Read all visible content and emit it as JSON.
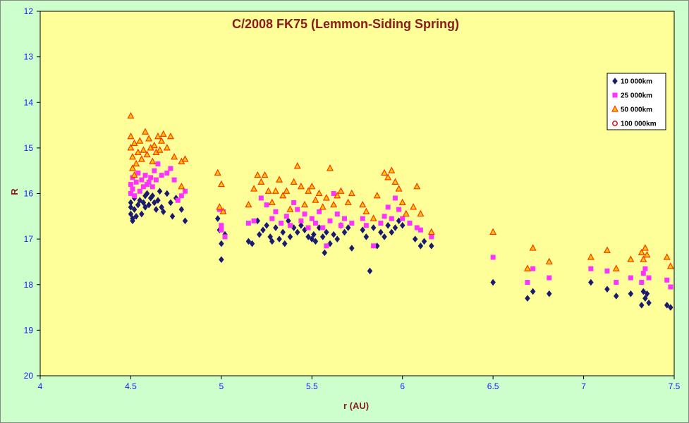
{
  "chart_data": {
    "type": "scatter",
    "title": "C/2008 FK75 (Lemmon-Siding Spring)",
    "xlabel": "r (AU)",
    "ylabel": "R",
    "xlim": [
      4,
      7.5
    ],
    "ylim": [
      12,
      20
    ],
    "y_inverted": true,
    "x_ticks": [
      "4",
      "4.5",
      "5",
      "5.5",
      "6",
      "6.5",
      "7",
      "7.5"
    ],
    "y_ticks": [
      "12",
      "13",
      "14",
      "15",
      "16",
      "17",
      "18",
      "19",
      "20"
    ],
    "grid": false,
    "legend_position": "top-right",
    "plot_background": "#ffff99",
    "page_background": "#ccffcc",
    "series": [
      {
        "name": "10 000km",
        "marker": "diamond",
        "color": "#1a1a70",
        "points": [
          [
            4.5,
            16.2
          ],
          [
            4.5,
            16.3
          ],
          [
            4.5,
            16.45
          ],
          [
            4.51,
            16.55
          ],
          [
            4.51,
            16.6
          ],
          [
            4.52,
            16.1
          ],
          [
            4.52,
            16.35
          ],
          [
            4.53,
            16.5
          ],
          [
            4.54,
            16.25
          ],
          [
            4.55,
            16.15
          ],
          [
            4.56,
            16.45
          ],
          [
            4.57,
            16.2
          ],
          [
            4.58,
            16.05
          ],
          [
            4.58,
            16.3
          ],
          [
            4.59,
            16.0
          ],
          [
            4.6,
            16.25
          ],
          [
            4.61,
            16.1
          ],
          [
            4.62,
            16.05
          ],
          [
            4.63,
            16.2
          ],
          [
            4.64,
            16.35
          ],
          [
            4.65,
            16.15
          ],
          [
            4.66,
            15.95
          ],
          [
            4.67,
            16.3
          ],
          [
            4.68,
            16.4
          ],
          [
            4.7,
            16.0
          ],
          [
            4.72,
            16.2
          ],
          [
            4.73,
            16.5
          ],
          [
            4.75,
            16.1
          ],
          [
            4.78,
            16.35
          ],
          [
            4.8,
            16.6
          ],
          [
            4.98,
            16.55
          ],
          [
            4.99,
            16.8
          ],
          [
            5.0,
            17.1
          ],
          [
            5.0,
            17.45
          ],
          [
            5.02,
            16.9
          ],
          [
            5.15,
            17.05
          ],
          [
            5.17,
            17.1
          ],
          [
            5.2,
            16.6
          ],
          [
            5.21,
            16.9
          ],
          [
            5.23,
            16.8
          ],
          [
            5.25,
            16.7
          ],
          [
            5.27,
            16.95
          ],
          [
            5.28,
            17.05
          ],
          [
            5.3,
            16.75
          ],
          [
            5.32,
            17.0
          ],
          [
            5.34,
            16.85
          ],
          [
            5.35,
            17.1
          ],
          [
            5.37,
            16.6
          ],
          [
            5.38,
            16.95
          ],
          [
            5.4,
            16.75
          ],
          [
            5.42,
            16.85
          ],
          [
            5.44,
            16.7
          ],
          [
            5.46,
            16.8
          ],
          [
            5.48,
            16.95
          ],
          [
            5.5,
            17.0
          ],
          [
            5.51,
            16.9
          ],
          [
            5.52,
            17.05
          ],
          [
            5.54,
            16.75
          ],
          [
            5.56,
            16.95
          ],
          [
            5.57,
            17.3
          ],
          [
            5.58,
            16.85
          ],
          [
            5.6,
            17.1
          ],
          [
            5.62,
            16.9
          ],
          [
            5.64,
            17.0
          ],
          [
            5.66,
            16.7
          ],
          [
            5.68,
            16.85
          ],
          [
            5.7,
            16.75
          ],
          [
            5.72,
            17.2
          ],
          [
            5.78,
            16.8
          ],
          [
            5.8,
            16.95
          ],
          [
            5.82,
            17.7
          ],
          [
            5.84,
            16.75
          ],
          [
            5.86,
            17.15
          ],
          [
            5.88,
            16.85
          ],
          [
            5.9,
            16.95
          ],
          [
            5.92,
            16.7
          ],
          [
            5.94,
            16.85
          ],
          [
            5.96,
            16.75
          ],
          [
            5.98,
            16.6
          ],
          [
            6.0,
            16.7
          ],
          [
            6.07,
            17.0
          ],
          [
            6.1,
            17.15
          ],
          [
            6.12,
            17.05
          ],
          [
            6.16,
            17.15
          ],
          [
            6.5,
            17.95
          ],
          [
            6.69,
            18.3
          ],
          [
            6.72,
            18.15
          ],
          [
            6.81,
            18.2
          ],
          [
            7.04,
            17.95
          ],
          [
            7.13,
            18.1
          ],
          [
            7.18,
            18.25
          ],
          [
            7.26,
            18.2
          ],
          [
            7.32,
            18.45
          ],
          [
            7.33,
            18.15
          ],
          [
            7.34,
            18.3
          ],
          [
            7.35,
            18.2
          ],
          [
            7.36,
            18.4
          ],
          [
            7.46,
            18.45
          ],
          [
            7.48,
            18.5
          ]
        ]
      },
      {
        "name": "25 000km",
        "marker": "square",
        "color": "#ff33ff",
        "points": [
          [
            4.5,
            15.8
          ],
          [
            4.5,
            16.0
          ],
          [
            4.51,
            15.65
          ],
          [
            4.51,
            15.9
          ],
          [
            4.52,
            16.05
          ],
          [
            4.53,
            15.75
          ],
          [
            4.54,
            15.55
          ],
          [
            4.55,
            15.95
          ],
          [
            4.56,
            15.7
          ],
          [
            4.57,
            15.85
          ],
          [
            4.58,
            15.6
          ],
          [
            4.59,
            15.8
          ],
          [
            4.6,
            15.75
          ],
          [
            4.61,
            15.65
          ],
          [
            4.62,
            15.85
          ],
          [
            4.63,
            15.5
          ],
          [
            4.64,
            15.7
          ],
          [
            4.65,
            15.35
          ],
          [
            4.67,
            15.6
          ],
          [
            4.7,
            15.55
          ],
          [
            4.72,
            15.45
          ],
          [
            4.74,
            15.7
          ],
          [
            4.76,
            16.15
          ],
          [
            4.78,
            16.05
          ],
          [
            4.8,
            15.95
          ],
          [
            4.99,
            16.35
          ],
          [
            5.0,
            16.7
          ],
          [
            5.0,
            16.8
          ],
          [
            5.01,
            16.4
          ],
          [
            5.02,
            16.95
          ],
          [
            5.15,
            16.65
          ],
          [
            5.18,
            16.6
          ],
          [
            5.22,
            16.1
          ],
          [
            5.25,
            16.25
          ],
          [
            5.28,
            16.55
          ],
          [
            5.3,
            16.4
          ],
          [
            5.33,
            16.65
          ],
          [
            5.36,
            16.5
          ],
          [
            5.38,
            16.7
          ],
          [
            5.4,
            16.2
          ],
          [
            5.42,
            16.35
          ],
          [
            5.44,
            16.6
          ],
          [
            5.46,
            16.45
          ],
          [
            5.48,
            16.75
          ],
          [
            5.5,
            16.55
          ],
          [
            5.52,
            16.65
          ],
          [
            5.54,
            16.4
          ],
          [
            5.56,
            16.75
          ],
          [
            5.58,
            17.15
          ],
          [
            5.6,
            16.6
          ],
          [
            5.62,
            16.0
          ],
          [
            5.64,
            16.45
          ],
          [
            5.66,
            16.7
          ],
          [
            5.68,
            16.55
          ],
          [
            5.72,
            16.65
          ],
          [
            5.78,
            16.55
          ],
          [
            5.8,
            16.7
          ],
          [
            5.84,
            17.15
          ],
          [
            5.88,
            16.65
          ],
          [
            5.9,
            16.5
          ],
          [
            5.92,
            16.3
          ],
          [
            5.94,
            16.55
          ],
          [
            5.96,
            16.1
          ],
          [
            5.98,
            16.35
          ],
          [
            6.0,
            16.55
          ],
          [
            6.04,
            16.65
          ],
          [
            6.08,
            16.75
          ],
          [
            6.1,
            16.8
          ],
          [
            6.16,
            16.95
          ],
          [
            6.5,
            17.4
          ],
          [
            6.69,
            17.95
          ],
          [
            6.72,
            17.65
          ],
          [
            6.81,
            17.85
          ],
          [
            7.04,
            17.65
          ],
          [
            7.13,
            17.7
          ],
          [
            7.18,
            17.95
          ],
          [
            7.26,
            17.85
          ],
          [
            7.32,
            17.95
          ],
          [
            7.33,
            17.75
          ],
          [
            7.34,
            17.65
          ],
          [
            7.36,
            17.85
          ],
          [
            7.46,
            17.9
          ],
          [
            7.48,
            18.05
          ]
        ]
      },
      {
        "name": "50 000km",
        "marker": "triangle",
        "color": "#ff3300",
        "fill": "#ffcc00",
        "points": [
          [
            4.5,
            14.3
          ],
          [
            4.5,
            14.75
          ],
          [
            4.5,
            15.0
          ],
          [
            4.51,
            15.2
          ],
          [
            4.51,
            15.45
          ],
          [
            4.52,
            15.6
          ],
          [
            4.52,
            14.9
          ],
          [
            4.53,
            15.35
          ],
          [
            4.54,
            15.1
          ],
          [
            4.55,
            14.85
          ],
          [
            4.56,
            15.25
          ],
          [
            4.57,
            15.05
          ],
          [
            4.58,
            14.65
          ],
          [
            4.59,
            15.15
          ],
          [
            4.6,
            14.8
          ],
          [
            4.61,
            15.0
          ],
          [
            4.62,
            15.3
          ],
          [
            4.63,
            14.95
          ],
          [
            4.64,
            15.1
          ],
          [
            4.65,
            14.75
          ],
          [
            4.66,
            15.05
          ],
          [
            4.67,
            14.85
          ],
          [
            4.68,
            14.7
          ],
          [
            4.7,
            15.0
          ],
          [
            4.72,
            14.75
          ],
          [
            4.74,
            15.2
          ],
          [
            4.78,
            15.3
          ],
          [
            4.8,
            15.25
          ],
          [
            4.78,
            15.85
          ],
          [
            4.98,
            15.55
          ],
          [
            4.99,
            16.3
          ],
          [
            5.0,
            15.8
          ],
          [
            5.01,
            16.4
          ],
          [
            5.15,
            16.25
          ],
          [
            5.18,
            15.9
          ],
          [
            5.2,
            15.6
          ],
          [
            5.22,
            15.75
          ],
          [
            5.24,
            15.6
          ],
          [
            5.26,
            15.95
          ],
          [
            5.28,
            16.2
          ],
          [
            5.3,
            15.95
          ],
          [
            5.32,
            15.7
          ],
          [
            5.34,
            16.05
          ],
          [
            5.36,
            15.95
          ],
          [
            5.38,
            16.35
          ],
          [
            5.4,
            15.75
          ],
          [
            5.42,
            15.4
          ],
          [
            5.44,
            15.85
          ],
          [
            5.46,
            16.25
          ],
          [
            5.48,
            15.95
          ],
          [
            5.5,
            15.85
          ],
          [
            5.52,
            16.15
          ],
          [
            5.54,
            16.0
          ],
          [
            5.56,
            16.3
          ],
          [
            5.58,
            16.1
          ],
          [
            5.6,
            15.45
          ],
          [
            5.62,
            16.25
          ],
          [
            5.64,
            16.05
          ],
          [
            5.66,
            15.95
          ],
          [
            5.7,
            16.2
          ],
          [
            5.72,
            16.0
          ],
          [
            5.78,
            16.25
          ],
          [
            5.8,
            16.4
          ],
          [
            5.84,
            16.55
          ],
          [
            5.86,
            16.05
          ],
          [
            5.9,
            15.55
          ],
          [
            5.92,
            15.65
          ],
          [
            5.94,
            15.5
          ],
          [
            5.96,
            15.75
          ],
          [
            5.98,
            15.9
          ],
          [
            6.0,
            16.2
          ],
          [
            6.02,
            16.45
          ],
          [
            6.06,
            16.3
          ],
          [
            6.08,
            15.85
          ],
          [
            6.1,
            16.45
          ],
          [
            6.16,
            16.85
          ],
          [
            6.5,
            16.85
          ],
          [
            6.69,
            17.65
          ],
          [
            6.72,
            17.2
          ],
          [
            6.81,
            17.5
          ],
          [
            7.04,
            17.4
          ],
          [
            7.13,
            17.25
          ],
          [
            7.18,
            17.65
          ],
          [
            7.26,
            17.45
          ],
          [
            7.32,
            17.3
          ],
          [
            7.33,
            17.45
          ],
          [
            7.34,
            17.2
          ],
          [
            7.35,
            17.35
          ],
          [
            7.46,
            17.4
          ],
          [
            7.48,
            17.6
          ]
        ]
      },
      {
        "name": "100 000km",
        "marker": "circle",
        "color": "#cc0000",
        "points": []
      }
    ]
  }
}
